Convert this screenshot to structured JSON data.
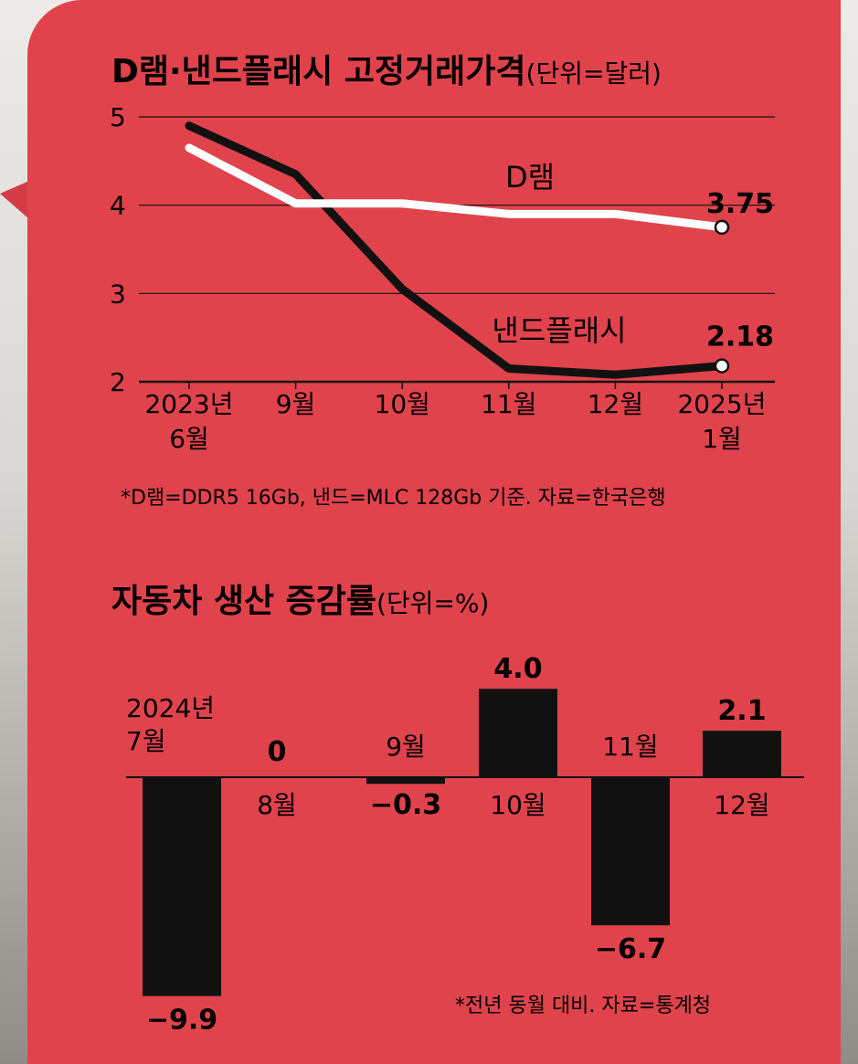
{
  "charts": {
    "memory": {
      "title": "D램·낸드플래시 고정거래가격",
      "unit": "(단위=달러)",
      "note": "*D램=DDR5 16Gb, 낸드=MLC 128Gb 기준. 자료=한국은행"
    },
    "auto": {
      "title": "자동차 생산 증감률",
      "unit": "(단위=%)",
      "note": "*전년 동월 대비. 자료=통계청"
    }
  },
  "colors": {
    "panel": "#e0434c",
    "dram_line": "#ffffff",
    "nand_line": "#111111",
    "bar": "#111111"
  },
  "chart_data": [
    {
      "type": "line",
      "title": "D램·낸드플래시 고정거래가격",
      "ylabel": "(단위=달러)",
      "x": [
        "2023년 6월",
        "9월",
        "10월",
        "11월",
        "12월",
        "2025년 1월"
      ],
      "ylim": [
        2,
        5
      ],
      "yticks": [
        2,
        3,
        4,
        5
      ],
      "grid": true,
      "series": [
        {
          "name": "D램",
          "values": [
            4.65,
            4.02,
            4.02,
            3.9,
            3.9,
            3.75
          ],
          "end_label": "3.75"
        },
        {
          "name": "낸드플래시",
          "values": [
            4.9,
            4.35,
            3.05,
            2.15,
            2.08,
            2.18
          ],
          "end_label": "2.18"
        }
      ]
    },
    {
      "type": "bar",
      "title": "자동차 생산 증감률",
      "ylabel": "(단위=%)",
      "categories": [
        "2024년 7월",
        "8월",
        "9월",
        "10월",
        "11월",
        "12월"
      ],
      "values": [
        -9.9,
        0,
        -0.3,
        4.0,
        -6.7,
        2.1
      ],
      "value_labels": [
        "−9.9",
        "0",
        "−0.3",
        "4.0",
        "−6.7",
        "2.1"
      ]
    }
  ]
}
